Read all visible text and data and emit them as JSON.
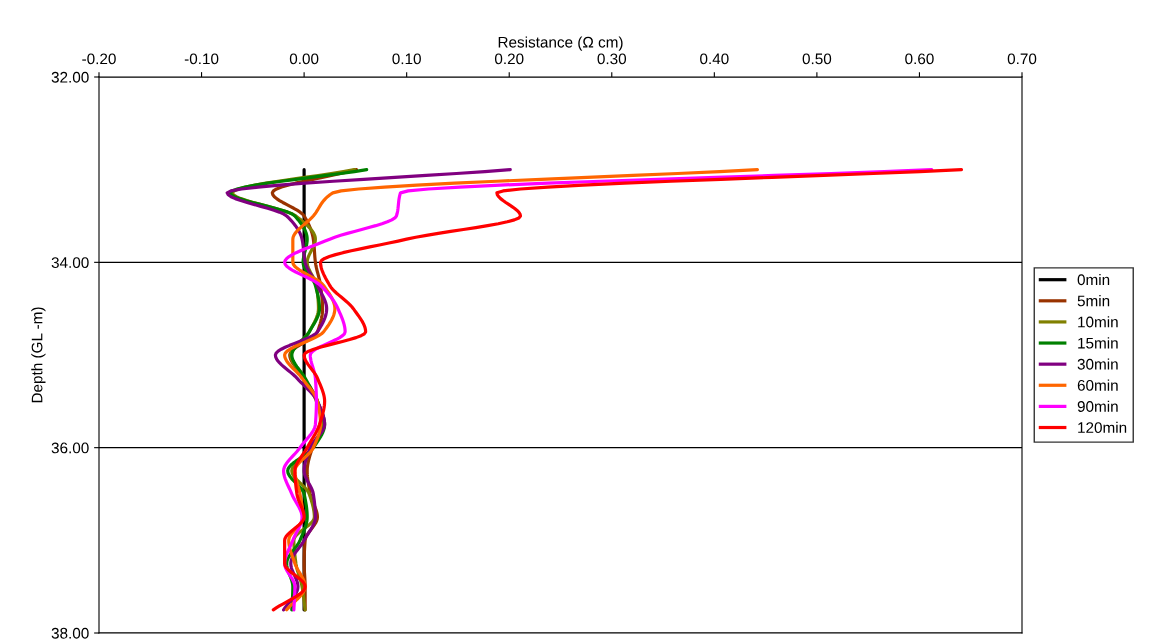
{
  "chart_data": {
    "type": "line",
    "xlabel": "Resistance (Ω cm)",
    "ylabel": "Depth (GL -m)",
    "xlim": [
      -0.2,
      0.7
    ],
    "xticks": [
      {
        "value": -0.2,
        "label": "-0.20"
      },
      {
        "value": -0.1,
        "label": "-0.10"
      },
      {
        "value": 0,
        "label": "0.00"
      },
      {
        "value": 0.1,
        "label": "0.10"
      },
      {
        "value": 0.2,
        "label": "0.20"
      },
      {
        "value": 0.3,
        "label": "0.30"
      },
      {
        "value": 0.4,
        "label": "0.40"
      },
      {
        "value": 0.5,
        "label": "0.50"
      },
      {
        "value": 0.6,
        "label": "0.60"
      },
      {
        "value": 0.7,
        "label": "0.70"
      }
    ],
    "ylim": [
      38,
      32
    ],
    "yticks": [
      {
        "value": 32,
        "label": "32.00"
      },
      {
        "value": 34,
        "label": "34.00"
      },
      {
        "value": 36,
        "label": "36.00"
      },
      {
        "value": 38,
        "label": "38.00"
      }
    ],
    "grid": "y",
    "legend": "right",
    "line_style": "solid",
    "marker": "none",
    "series": [
      {
        "name": "0min",
        "color": "#000000",
        "x": [
          0,
          0,
          0,
          0,
          0,
          0,
          0,
          0,
          0,
          0,
          0,
          0,
          0,
          0,
          0,
          0,
          0,
          0,
          0,
          0
        ],
        "values": [
          33.0,
          33.25,
          33.5,
          33.75,
          34.0,
          34.25,
          34.5,
          34.75,
          35.0,
          35.25,
          35.5,
          35.75,
          36.0,
          36.25,
          36.5,
          36.75,
          37.0,
          37.25,
          37.5,
          37.75
        ]
      },
      {
        "name": "5min",
        "color": "#993300",
        "x": [
          0.051,
          -0.031,
          0.0,
          0.009,
          0.011,
          0.016,
          0.018,
          0.013,
          -0.014,
          0.0,
          0.013,
          0.018,
          0.008,
          0.003,
          0.006,
          0.013,
          0.001,
          0.0,
          0.001,
          0.001
        ],
        "values": [
          33.0,
          33.25,
          33.5,
          33.75,
          34.0,
          34.25,
          34.5,
          34.75,
          35.0,
          35.25,
          35.5,
          35.75,
          36.0,
          36.25,
          36.5,
          36.75,
          37.0,
          37.25,
          37.5,
          37.75
        ]
      },
      {
        "name": "10min",
        "color": "#808000",
        "x": [
          0.049,
          -0.07,
          -0.008,
          0.011,
          0.003,
          0.012,
          0.014,
          0.005,
          -0.013,
          0.0,
          0.012,
          0.018,
          0.008,
          -0.012,
          0.005,
          0.01,
          -0.01,
          -0.008,
          -0.002,
          0.001
        ],
        "values": [
          33.0,
          33.25,
          33.5,
          33.75,
          34.0,
          34.25,
          34.5,
          34.75,
          35.0,
          35.25,
          35.5,
          35.75,
          36.0,
          36.25,
          36.5,
          36.75,
          37.0,
          37.25,
          37.5,
          37.75
        ]
      },
      {
        "name": "15min",
        "color": "#008000",
        "x": [
          0.061,
          -0.072,
          -0.009,
          0.003,
          -0.001,
          0.011,
          0.015,
          0.005,
          -0.012,
          0.001,
          0.013,
          0.02,
          0.009,
          -0.016,
          0.0,
          0.003,
          -0.004,
          -0.017,
          -0.011,
          -0.012
        ],
        "values": [
          33.0,
          33.25,
          33.5,
          33.75,
          34.0,
          34.25,
          34.5,
          34.75,
          35.0,
          35.25,
          35.5,
          35.75,
          36.0,
          36.25,
          36.5,
          36.75,
          37.0,
          37.25,
          37.5,
          37.75
        ]
      },
      {
        "name": "30min",
        "color": "#800080",
        "x": [
          0.201,
          -0.075,
          -0.017,
          -0.002,
          0.001,
          0.013,
          0.022,
          0.013,
          -0.028,
          -0.007,
          0.013,
          0.02,
          0.006,
          0.0,
          0.009,
          0.011,
          0.0,
          -0.013,
          -0.006,
          -0.02
        ],
        "values": [
          33.0,
          33.25,
          33.5,
          33.75,
          34.0,
          34.25,
          34.5,
          34.75,
          35.0,
          35.25,
          35.5,
          35.75,
          36.0,
          36.25,
          36.5,
          36.75,
          37.0,
          37.25,
          37.5,
          37.75
        ]
      },
      {
        "name": "60min",
        "color": "#ff6600",
        "x": [
          0.442,
          0.028,
          0.009,
          -0.011,
          -0.011,
          0.019,
          0.03,
          0.019,
          -0.019,
          -0.002,
          0.013,
          0.016,
          0.009,
          -0.009,
          -0.004,
          -0.001,
          -0.015,
          -0.009,
          0.001,
          -0.017
        ],
        "values": [
          33.0,
          33.25,
          33.5,
          33.75,
          34.0,
          34.25,
          34.5,
          34.75,
          35.0,
          35.25,
          35.5,
          35.75,
          36.0,
          36.25,
          36.5,
          36.75,
          37.0,
          37.25,
          37.5,
          37.75
        ]
      },
      {
        "name": "90min",
        "color": "#ff00ff",
        "x": [
          0.612,
          0.094,
          0.09,
          0.025,
          -0.019,
          0.016,
          0.033,
          0.04,
          0.006,
          0.011,
          0.012,
          0.011,
          -0.004,
          -0.02,
          -0.012,
          -0.002,
          -0.011,
          -0.019,
          -0.009,
          -0.01
        ],
        "values": [
          33.0,
          33.25,
          33.5,
          33.75,
          34.0,
          34.25,
          34.5,
          34.75,
          35.0,
          35.25,
          35.5,
          35.75,
          36.0,
          36.25,
          36.5,
          36.75,
          37.0,
          37.25,
          37.5,
          37.75
        ]
      },
      {
        "name": "120min",
        "color": "#ff0000",
        "x": [
          0.641,
          0.188,
          0.211,
          0.1,
          0.016,
          0.025,
          0.048,
          0.06,
          0.0,
          0.013,
          0.02,
          0.015,
          0.003,
          -0.009,
          -0.007,
          0.0,
          -0.019,
          -0.019,
          0.001,
          -0.03
        ],
        "values": [
          33.0,
          33.25,
          33.5,
          33.75,
          34.0,
          34.25,
          34.5,
          34.75,
          35.0,
          35.25,
          35.5,
          35.75,
          36.0,
          36.25,
          36.5,
          36.75,
          37.0,
          37.25,
          37.5,
          37.75
        ]
      }
    ]
  }
}
